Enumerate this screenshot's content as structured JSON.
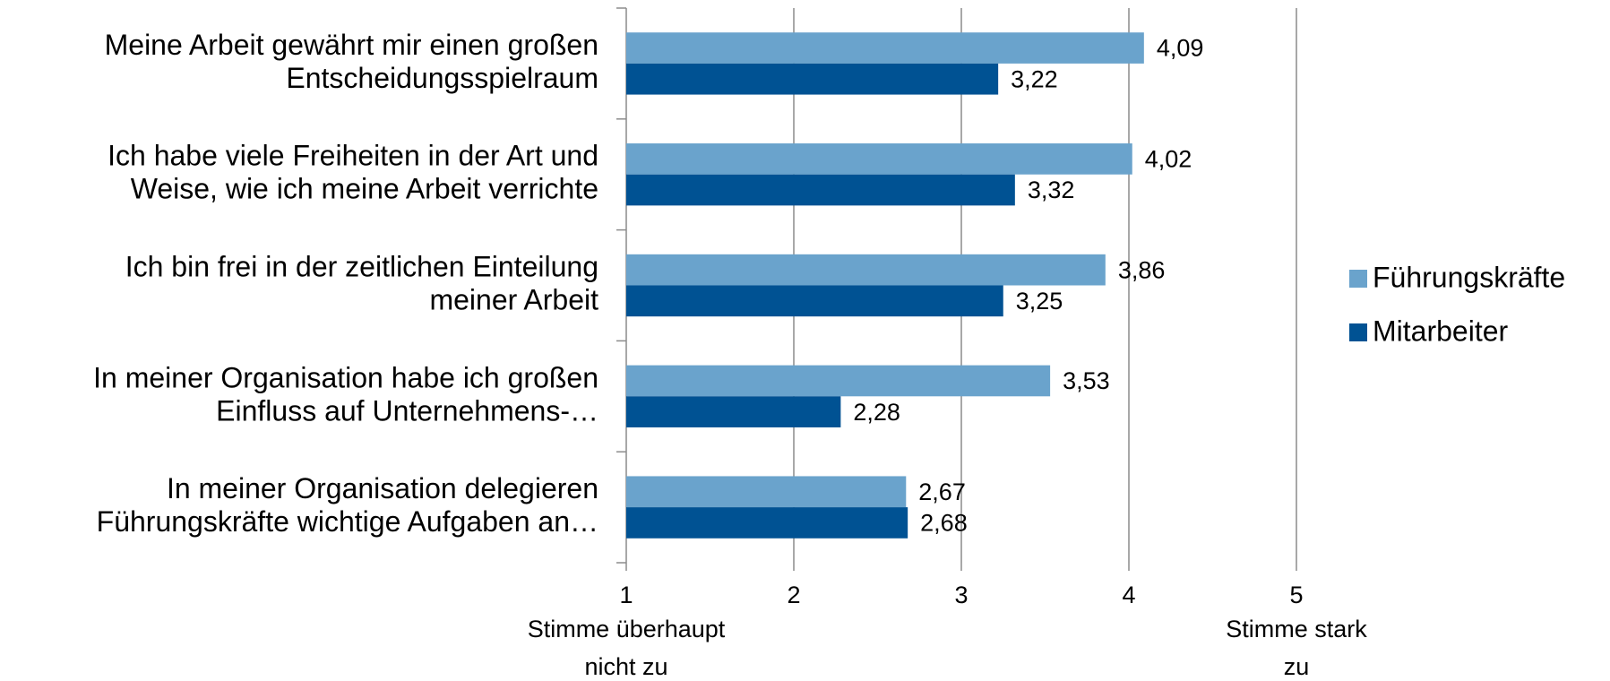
{
  "chart_data": {
    "type": "bar",
    "orientation": "horizontal",
    "categories": [
      [
        "Meine Arbeit gewährt mir einen großen",
        "Entscheidungsspielraum"
      ],
      [
        "Ich habe viele Freiheiten in der Art und",
        "Weise, wie ich meine Arbeit verrichte"
      ],
      [
        "Ich bin frei in der zeitlichen Einteilung",
        "meiner Arbeit"
      ],
      [
        "In meiner Organisation habe ich großen",
        "Einfluss auf Unternehmens-…"
      ],
      [
        "In meiner Organisation delegieren",
        "Führungskräfte wichtige Aufgaben an…"
      ]
    ],
    "series": [
      {
        "name": "Führungskräfte",
        "color": "#6aa3cc",
        "values": [
          4.09,
          4.02,
          3.86,
          3.53,
          2.67
        ],
        "value_labels": [
          "4,09",
          "4,02",
          "3,86",
          "3,53",
          "2,67"
        ]
      },
      {
        "name": "Mitarbeiter",
        "color": "#005293",
        "values": [
          3.22,
          3.32,
          3.25,
          2.28,
          2.68
        ],
        "value_labels": [
          "3,22",
          "3,32",
          "3,25",
          "2,28",
          "2,68"
        ]
      }
    ],
    "xlim": [
      1,
      5
    ],
    "xticks": [
      1,
      2,
      3,
      4,
      5
    ],
    "grid": true,
    "legend": "right",
    "x_end_labels": [
      [
        "Stimme überhaupt",
        "nicht zu"
      ],
      [
        "Stimme stark",
        "zu"
      ]
    ]
  }
}
